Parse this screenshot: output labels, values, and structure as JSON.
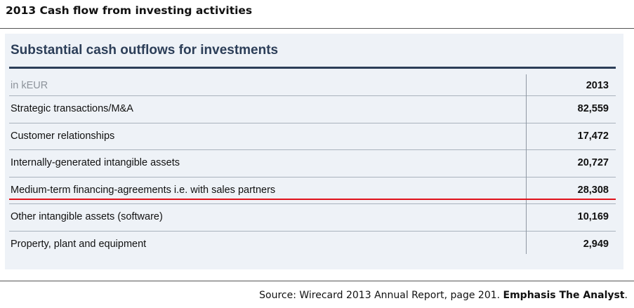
{
  "page_title": "2013 Cash flow from investing activities",
  "panel": {
    "title": "Substantial cash outflows for investments",
    "unit_label": "in kEUR",
    "year_header": "2013",
    "rows": [
      {
        "label": "Strategic transactions/M&A",
        "value": "82,559"
      },
      {
        "label": "Customer relationships",
        "value": "17,472"
      },
      {
        "label": "Internally-generated intangible assets",
        "value": "20,727"
      },
      {
        "label": "Medium-term financing-agreements i.e. with sales partners",
        "value": "28,308"
      },
      {
        "label": "Other intangible assets (software)",
        "value": "10,169"
      },
      {
        "label": "Property, plant and equipment",
        "value": "2,949"
      }
    ],
    "highlight_color": "#e0121b"
  },
  "source": {
    "text": "Source: Wirecard 2013 Annual Report, page 201. ",
    "emphasis": "Emphasis The Analyst",
    "suffix": "."
  }
}
